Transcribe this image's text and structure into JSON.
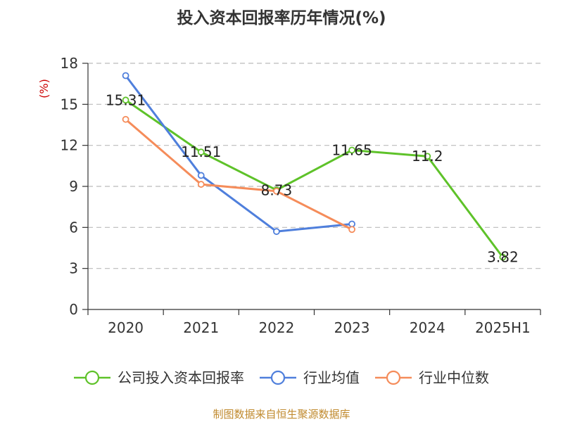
{
  "colors": {
    "company": "#5ec229",
    "industry_avg": "#4f7fdc",
    "industry_median": "#f58c5a",
    "axis": "#333333",
    "grid": "#bbbbbb",
    "unit": "#cc0000",
    "source": "#c08a2e"
  },
  "chart_data": {
    "type": "line",
    "title": "投入资本回报率历年情况(%)",
    "ylabel": "(%)",
    "xlabel": "",
    "ylim": [
      0,
      18
    ],
    "yticks": [
      0,
      3,
      6,
      9,
      12,
      15,
      18
    ],
    "grid": true,
    "legend_position": "bottom",
    "categories": [
      "2020",
      "2021",
      "2022",
      "2023",
      "2024",
      "2025H1"
    ],
    "series": [
      {
        "name": "公司投入资本回报率",
        "color_key": "company",
        "values": [
          15.31,
          11.51,
          8.73,
          11.65,
          11.2,
          3.82
        ],
        "labels": [
          "15.31",
          "11.51",
          "8.73",
          "11.65",
          "11.2",
          "3.82"
        ]
      },
      {
        "name": "行业均值",
        "color_key": "industry_avg",
        "values": [
          17.1,
          9.8,
          5.7,
          6.25,
          null,
          null
        ]
      },
      {
        "name": "行业中位数",
        "color_key": "industry_median",
        "values": [
          13.9,
          9.15,
          8.65,
          5.85,
          null,
          null
        ]
      }
    ]
  },
  "source_text": "制图数据来自恒生聚源数据库"
}
